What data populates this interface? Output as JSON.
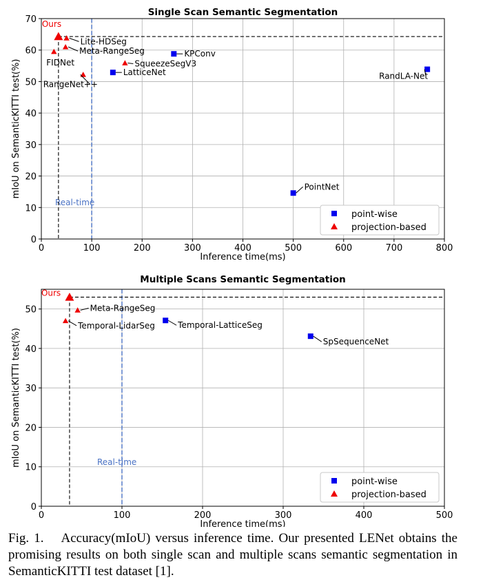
{
  "colors": {
    "point_wise": "#0000ee",
    "projection_based": "#ee0000",
    "ours_label": "#ee0000",
    "realtime": "#4a72c4",
    "grid": "#b0b0b0"
  },
  "chart_data": [
    {
      "type": "scatter",
      "title": "Single Scan Semantic Segmentation",
      "xlabel": "Inference time(ms)",
      "ylabel": "mIoU on SemanticKITTI test(%)",
      "xlim": [
        0,
        800
      ],
      "ylim": [
        0,
        70
      ],
      "xticks": [
        0,
        100,
        200,
        300,
        400,
        500,
        600,
        700,
        800
      ],
      "yticks": [
        0,
        10,
        20,
        30,
        40,
        50,
        60,
        70
      ],
      "grid": true,
      "legend_position": "bottom-right",
      "realtime_line": {
        "x": 100,
        "label": "Real-time"
      },
      "ours_guides": {
        "x": 34,
        "y": 64.3
      },
      "series": [
        {
          "name": "point-wise",
          "marker": "square",
          "points": [
            {
              "label": "KPConv",
              "x": 263,
              "y": 58.8
            },
            {
              "label": "LatticeNet",
              "x": 142,
              "y": 52.9
            },
            {
              "label": "RandLA-Net",
              "x": 766,
              "y": 53.9
            },
            {
              "label": "PointNet",
              "x": 500,
              "y": 14.6
            }
          ]
        },
        {
          "name": "projection-based",
          "marker": "triangle",
          "points": [
            {
              "label": "Ours",
              "x": 34,
              "y": 64.3
            },
            {
              "label": "Lite-HDSeg",
              "x": 50,
              "y": 63.8
            },
            {
              "label": "Meta-RangeSeg",
              "x": 48,
              "y": 61.0
            },
            {
              "label": "FIDNet",
              "x": 25,
              "y": 59.5
            },
            {
              "label": "SqueezeSegV3",
              "x": 166,
              "y": 55.9
            },
            {
              "label": "RangeNet++",
              "x": 83,
              "y": 52.2
            }
          ]
        }
      ]
    },
    {
      "type": "scatter",
      "title": "Multiple Scans Semantic Segmentation",
      "xlabel": "Inference time(ms)",
      "ylabel": "mIoU on SemanticKITTI test(%)",
      "xlim": [
        0,
        500
      ],
      "ylim": [
        0,
        55
      ],
      "xticks": [
        0,
        100,
        200,
        300,
        400,
        500
      ],
      "yticks": [
        0,
        10,
        20,
        30,
        40,
        50
      ],
      "grid": true,
      "legend_position": "bottom-right",
      "realtime_line": {
        "x": 100,
        "label": "Real-time"
      },
      "ours_guides": {
        "x": 35,
        "y": 53.0
      },
      "series": [
        {
          "name": "point-wise",
          "marker": "square",
          "points": [
            {
              "label": "Temporal-LatticeSeg",
              "x": 154,
              "y": 47.1
            },
            {
              "label": "SpSequenceNet",
              "x": 334,
              "y": 43.1
            }
          ]
        },
        {
          "name": "projection-based",
          "marker": "triangle",
          "points": [
            {
              "label": "Ours",
              "x": 35,
              "y": 53.0
            },
            {
              "label": "Meta-RangeSeg",
              "x": 45,
              "y": 49.7
            },
            {
              "label": "Temporal-LidarSeg",
              "x": 30,
              "y": 47.0
            }
          ]
        }
      ]
    }
  ],
  "caption": {
    "text": "Fig. 1.  Accuracy(mIoU) versus inference time. Our presented LENet obtains the promising results on both single scan and multiple scans semantic segmentation in SemanticKITTI test dataset [1]."
  }
}
